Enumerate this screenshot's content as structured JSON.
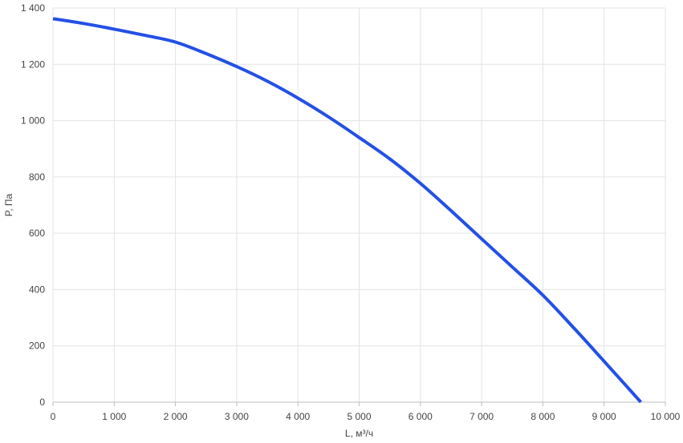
{
  "chart_data": {
    "type": "line",
    "title": "",
    "xlabel": "L, м³/ч",
    "ylabel": "P, Па",
    "xlim": [
      0,
      10000
    ],
    "ylim": [
      0,
      1400
    ],
    "grid": true,
    "x_ticks": [
      0,
      1000,
      2000,
      3000,
      4000,
      5000,
      6000,
      7000,
      8000,
      9000,
      10000
    ],
    "x_tick_labels": [
      "0",
      "1 000",
      "2 000",
      "3 000",
      "4 000",
      "5 000",
      "6 000",
      "7 000",
      "8 000",
      "9 000",
      "10 000"
    ],
    "y_ticks": [
      0,
      200,
      400,
      600,
      800,
      1000,
      1200,
      1400
    ],
    "y_tick_labels": [
      "0",
      "200",
      "400",
      "600",
      "800",
      "1 000",
      "1 200",
      "1 400"
    ],
    "series": [
      {
        "color": "#2450e6",
        "x": [
          0,
          500,
          1000,
          1500,
          2000,
          2500,
          3000,
          3500,
          4000,
          4500,
          5000,
          5500,
          6000,
          6500,
          7000,
          7500,
          8000,
          8500,
          9000,
          9600
        ],
        "y": [
          1362,
          1345,
          1325,
          1303,
          1279,
          1238,
          1192,
          1140,
          1080,
          1013,
          940,
          864,
          777,
          680,
          580,
          480,
          380,
          265,
          145,
          0
        ]
      }
    ]
  }
}
